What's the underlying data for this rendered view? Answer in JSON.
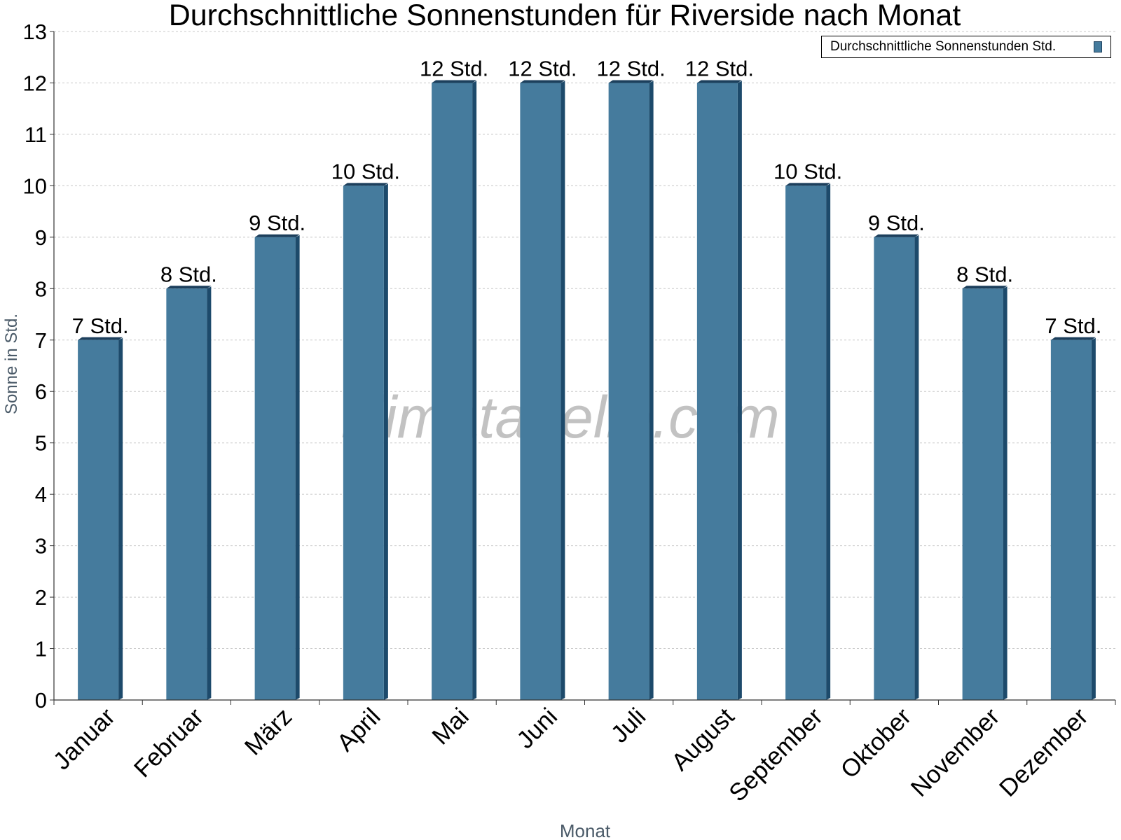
{
  "chart_data": {
    "type": "bar",
    "title": "Durchschnittliche Sonnenstunden für Riverside nach Monat",
    "xlabel": "Monat",
    "ylabel": "Sonne in Std.",
    "categories": [
      "Januar",
      "Februar",
      "März",
      "April",
      "Mai",
      "Juni",
      "Juli",
      "August",
      "September",
      "Oktober",
      "November",
      "Dezember"
    ],
    "series": [
      {
        "name": "Durchschnittliche Sonnenstunden Std.",
        "values": [
          7,
          8,
          9,
          10,
          12,
          12,
          12,
          12,
          10,
          9,
          8,
          7
        ],
        "labels": [
          "7 Std.",
          "8 Std.",
          "9 Std.",
          "10 Std.",
          "12 Std.",
          "12 Std.",
          "12 Std.",
          "12 Std.",
          "10 Std.",
          "9 Std.",
          "8 Std.",
          "7 Std."
        ]
      }
    ],
    "ylim": [
      0,
      13
    ],
    "yticks": [
      "0",
      "1",
      "2",
      "3",
      "4",
      "5",
      "6",
      "7",
      "8",
      "9",
      "10",
      "11",
      "12",
      "13"
    ],
    "grid": true,
    "legend_position": "top-right",
    "watermark": "klimatabelle.com",
    "colors": {
      "bar": "#457b9d",
      "bar_side": "#1d4a6b",
      "bar_top": "#1c3f5c"
    }
  }
}
